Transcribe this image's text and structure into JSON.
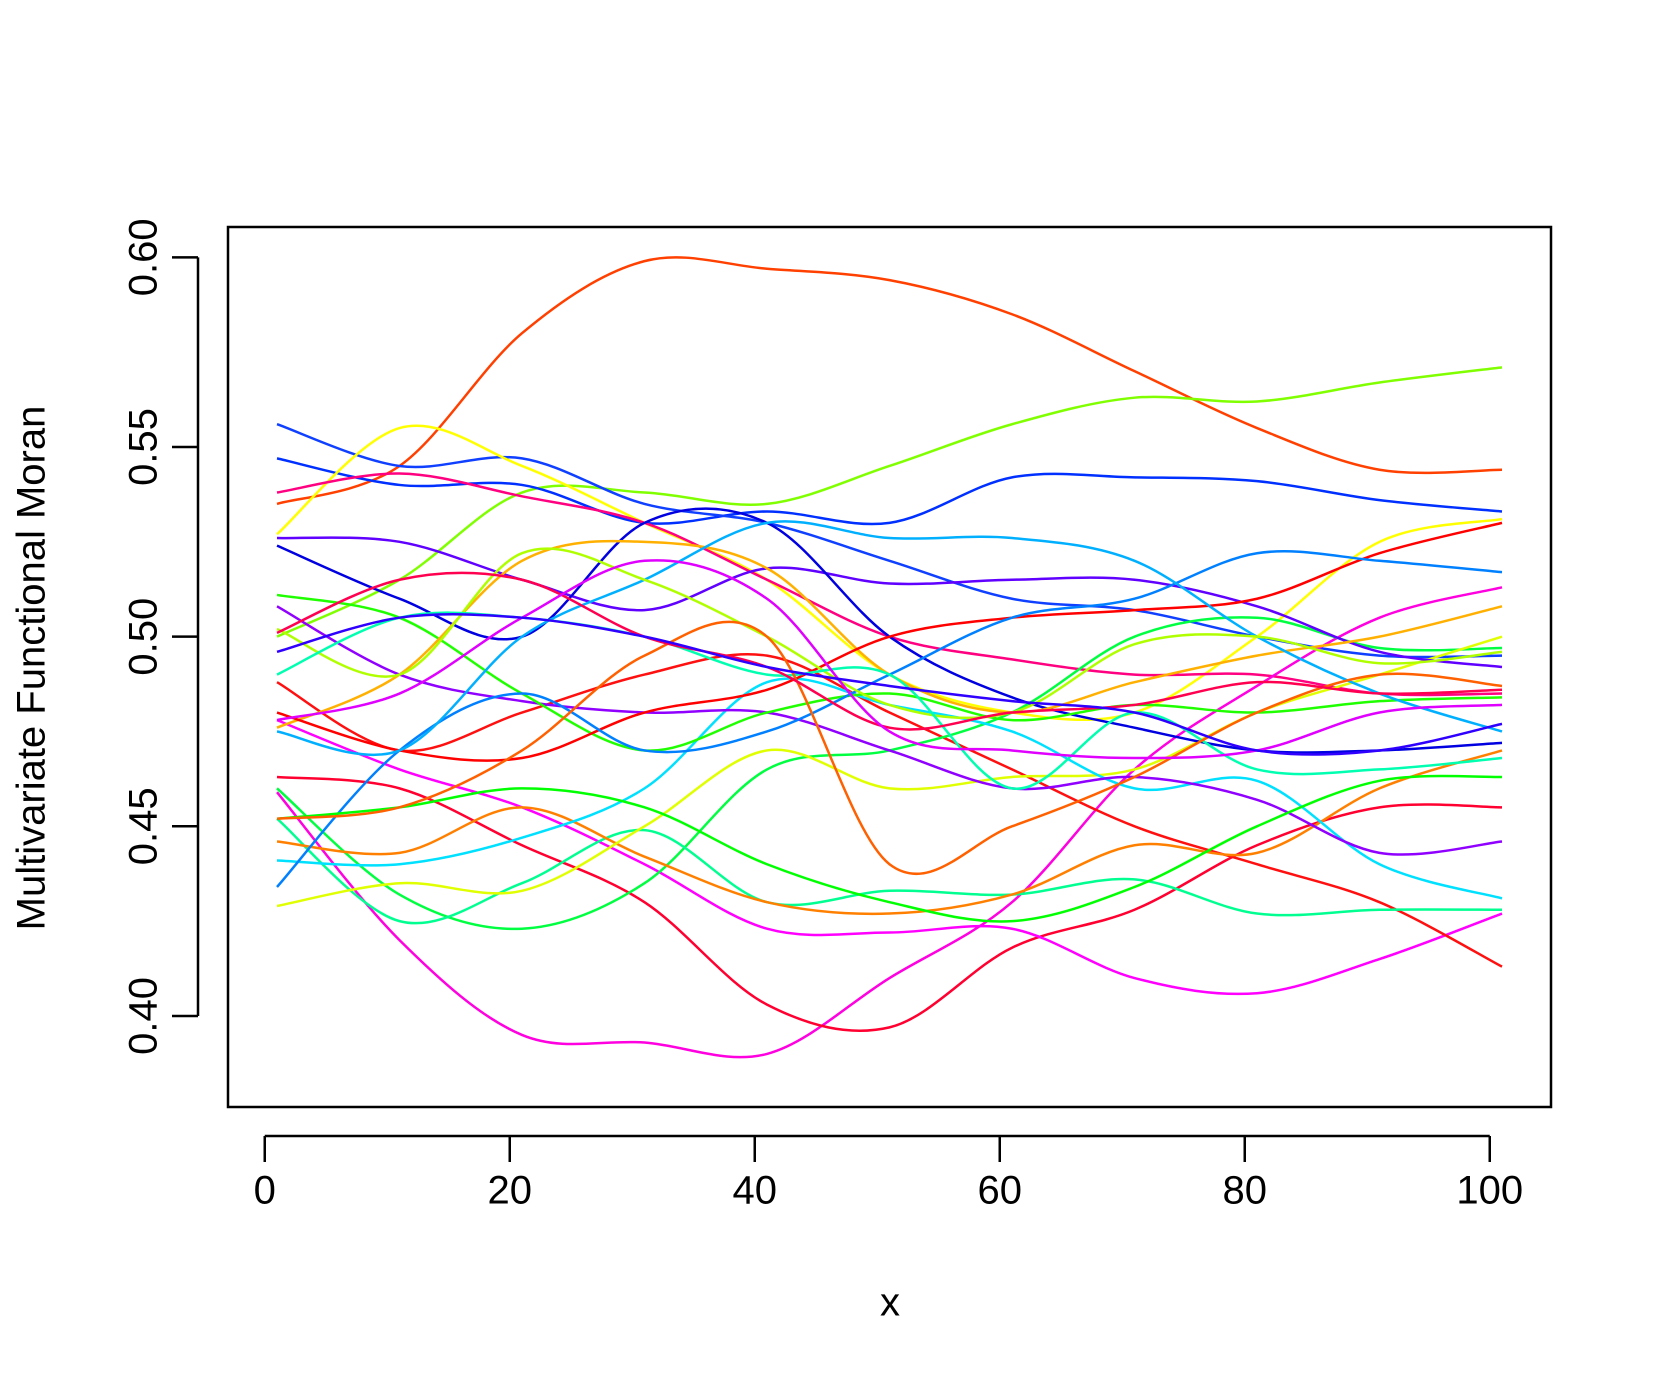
{
  "chart_data": {
    "type": "line",
    "x_label": "x",
    "y_label": "Multivariate Functional Moran",
    "x": [
      1,
      11,
      21,
      31,
      41,
      51,
      61,
      71,
      81,
      91,
      101
    ],
    "xlim": [
      -3,
      105
    ],
    "ylim": [
      0.376,
      0.608
    ],
    "xticks": [
      0,
      20,
      40,
      60,
      80,
      100
    ],
    "yticks": [
      {
        "value": 0.4,
        "label": "0.40"
      },
      {
        "value": 0.45,
        "label": "0.45"
      },
      {
        "value": 0.5,
        "label": "0.50"
      },
      {
        "value": 0.55,
        "label": "0.55"
      },
      {
        "value": 0.6,
        "label": "0.60"
      }
    ],
    "series": [
      {
        "color": "#FF4000",
        "values": [
          0.535,
          0.545,
          0.58,
          0.599,
          0.597,
          0.594,
          0.585,
          0.57,
          0.555,
          0.544,
          0.544
        ]
      },
      {
        "color": "#80FF00",
        "values": [
          0.5,
          0.515,
          0.538,
          0.538,
          0.535,
          0.545,
          0.556,
          0.563,
          0.562,
          0.567,
          0.571
        ]
      },
      {
        "color": "#0030FF",
        "values": [
          0.547,
          0.54,
          0.54,
          0.53,
          0.533,
          0.53,
          0.542,
          0.542,
          0.541,
          0.536,
          0.533
        ]
      },
      {
        "color": "#1040FF",
        "values": [
          0.556,
          0.545,
          0.547,
          0.535,
          0.53,
          0.52,
          0.51,
          0.507,
          0.5,
          0.495,
          0.495
        ]
      },
      {
        "color": "#FFFF00",
        "values": [
          0.527,
          0.555,
          0.545,
          0.53,
          0.515,
          0.49,
          0.48,
          0.48,
          0.5,
          0.525,
          0.531
        ]
      },
      {
        "color": "#FF0080",
        "values": [
          0.538,
          0.543,
          0.537,
          0.53,
          0.515,
          0.5,
          0.494,
          0.49,
          0.49,
          0.485,
          0.485
        ]
      },
      {
        "color": "#FF00E0",
        "values": [
          0.459,
          0.42,
          0.395,
          0.393,
          0.39,
          0.41,
          0.43,
          0.465,
          0.487,
          0.505,
          0.513
        ]
      },
      {
        "color": "#FF0030",
        "values": [
          0.463,
          0.46,
          0.445,
          0.43,
          0.403,
          0.397,
          0.418,
          0.428,
          0.445,
          0.455,
          0.455
        ]
      },
      {
        "color": "#FF00FF",
        "values": [
          0.478,
          0.465,
          0.455,
          0.44,
          0.423,
          0.422,
          0.423,
          0.41,
          0.406,
          0.415,
          0.427
        ]
      },
      {
        "color": "#FF1010",
        "values": [
          0.488,
          0.47,
          0.48,
          0.49,
          0.495,
          0.48,
          0.465,
          0.45,
          0.44,
          0.43,
          0.413
        ]
      },
      {
        "color": "#00FF40",
        "values": [
          0.46,
          0.432,
          0.423,
          0.435,
          0.465,
          0.47,
          0.48,
          0.5,
          0.505,
          0.497,
          0.497
        ]
      },
      {
        "color": "#00FF90",
        "values": [
          0.452,
          0.425,
          0.435,
          0.449,
          0.43,
          0.433,
          0.432,
          0.436,
          0.427,
          0.428,
          0.428
        ]
      },
      {
        "color": "#FF8000",
        "values": [
          0.446,
          0.443,
          0.455,
          0.442,
          0.43,
          0.427,
          0.432,
          0.445,
          0.443,
          0.46,
          0.47
        ]
      },
      {
        "color": "#E0FF00",
        "values": [
          0.429,
          0.435,
          0.433,
          0.45,
          0.47,
          0.46,
          0.463,
          0.465,
          0.48,
          0.49,
          0.5
        ]
      },
      {
        "color": "#00E0FF",
        "values": [
          0.441,
          0.44,
          0.447,
          0.46,
          0.488,
          0.482,
          0.475,
          0.46,
          0.462,
          0.44,
          0.431
        ]
      },
      {
        "color": "#9000FF",
        "values": [
          0.508,
          0.49,
          0.483,
          0.48,
          0.48,
          0.47,
          0.46,
          0.463,
          0.457,
          0.443,
          0.446
        ]
      },
      {
        "color": "#6000FF",
        "values": [
          0.526,
          0.525,
          0.515,
          0.507,
          0.518,
          0.514,
          0.515,
          0.515,
          0.508,
          0.496,
          0.492
        ]
      },
      {
        "color": "#0000E0",
        "values": [
          0.524,
          0.51,
          0.5,
          0.53,
          0.53,
          0.5,
          0.484,
          0.476,
          0.47,
          0.47,
          0.472
        ]
      },
      {
        "color": "#20FF00",
        "values": [
          0.511,
          0.505,
          0.485,
          0.47,
          0.48,
          0.485,
          0.478,
          0.482,
          0.48,
          0.483,
          0.484
        ]
      },
      {
        "color": "#FFB000",
        "values": [
          0.476,
          0.49,
          0.52,
          0.525,
          0.518,
          0.49,
          0.48,
          0.488,
          0.495,
          0.5,
          0.508
        ]
      },
      {
        "color": "#FF0000",
        "values": [
          0.48,
          0.47,
          0.468,
          0.48,
          0.486,
          0.5,
          0.505,
          0.507,
          0.51,
          0.522,
          0.53
        ]
      },
      {
        "color": "#0080FF",
        "values": [
          0.434,
          0.47,
          0.485,
          0.47,
          0.475,
          0.49,
          0.505,
          0.51,
          0.522,
          0.52,
          0.517
        ]
      },
      {
        "color": "#00B0FF",
        "values": [
          0.475,
          0.47,
          0.5,
          0.515,
          0.53,
          0.526,
          0.526,
          0.52,
          0.5,
          0.485,
          0.475
        ]
      },
      {
        "color": "#00FF00",
        "values": [
          0.452,
          0.455,
          0.46,
          0.455,
          0.44,
          0.43,
          0.425,
          0.434,
          0.45,
          0.462,
          0.463
        ]
      },
      {
        "color": "#B0FF00",
        "values": [
          0.502,
          0.49,
          0.522,
          0.515,
          0.5,
          0.482,
          0.48,
          0.498,
          0.5,
          0.493,
          0.496
        ]
      },
      {
        "color": "#00FFB0",
        "values": [
          0.49,
          0.505,
          0.505,
          0.5,
          0.49,
          0.49,
          0.46,
          0.48,
          0.465,
          0.465,
          0.468
        ]
      },
      {
        "color": "#FF6000",
        "values": [
          0.452,
          0.455,
          0.47,
          0.495,
          0.5,
          0.44,
          0.45,
          0.463,
          0.48,
          0.49,
          0.487
        ]
      },
      {
        "color": "#FF0050",
        "values": [
          0.501,
          0.515,
          0.515,
          0.5,
          0.492,
          0.476,
          0.48,
          0.482,
          0.488,
          0.485,
          0.486
        ]
      },
      {
        "color": "#E000FF",
        "values": [
          0.478,
          0.485,
          0.505,
          0.52,
          0.51,
          0.475,
          0.47,
          0.468,
          0.47,
          0.48,
          0.482
        ]
      },
      {
        "color": "#3000FF",
        "values": [
          0.496,
          0.505,
          0.505,
          0.5,
          0.492,
          0.487,
          0.483,
          0.48,
          0.47,
          0.47,
          0.477
        ]
      }
    ]
  }
}
